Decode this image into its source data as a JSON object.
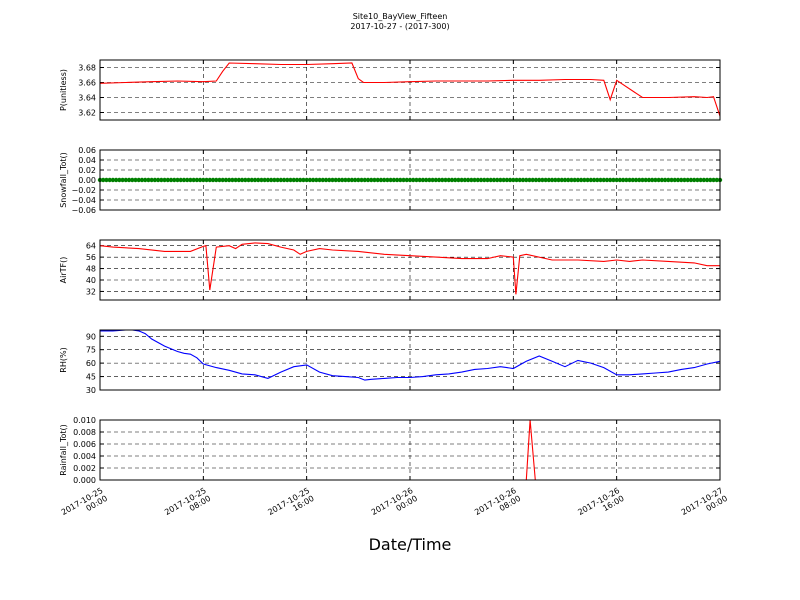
{
  "figure": {
    "title": "Site10_BayView_Fifteen",
    "subtitle": "2017-10-27 - (2017-300)",
    "xlabel": "Date/Time"
  },
  "chart_data": [
    {
      "type": "line",
      "ylabel": "P(unitless)",
      "ylim": [
        3.61,
        3.69
      ],
      "yticks": [
        3.62,
        3.64,
        3.66,
        3.68
      ],
      "ytick_labels": [
        "3.62",
        "3.64",
        "3.66",
        "3.68"
      ],
      "color": "#ff0000",
      "grid": true,
      "series": [
        {
          "x": [
            0,
            2,
            4,
            6,
            8,
            9,
            9.5,
            10,
            12,
            14,
            16,
            18,
            19.5,
            20,
            20.4,
            21,
            22,
            24,
            26,
            28,
            30,
            32,
            34,
            36,
            38,
            39,
            39.5,
            40,
            42,
            44,
            46,
            47,
            47.5,
            48
          ],
          "y": [
            3.659,
            3.66,
            3.661,
            3.662,
            3.661,
            3.662,
            3.675,
            3.686,
            3.685,
            3.684,
            3.684,
            3.685,
            3.686,
            3.665,
            3.66,
            3.66,
            3.66,
            3.661,
            3.662,
            3.662,
            3.662,
            3.663,
            3.663,
            3.664,
            3.664,
            3.663,
            3.637,
            3.663,
            3.64,
            3.64,
            3.641,
            3.64,
            3.641,
            3.615
          ]
        }
      ]
    },
    {
      "type": "scatter",
      "ylabel": "Snowfall_Tot()",
      "ylim": [
        -0.06,
        0.06
      ],
      "yticks": [
        -0.06,
        -0.04,
        -0.02,
        0.0,
        0.02,
        0.04,
        0.06
      ],
      "ytick_labels": [
        "−0.06",
        "−0.04",
        "−0.02",
        "0.00",
        "0.02",
        "0.04",
        "0.06"
      ],
      "color": "#008000",
      "grid": true,
      "series": [
        {
          "x_range": [
            0,
            48
          ],
          "constant": 0.0
        }
      ]
    },
    {
      "type": "line",
      "ylabel": "AirTF()",
      "ylim": [
        26,
        68
      ],
      "yticks": [
        32,
        40,
        48,
        56,
        64
      ],
      "ytick_labels": [
        "32",
        "40",
        "48",
        "56",
        "64"
      ],
      "color": "#ff0000",
      "grid": true,
      "series": [
        {
          "x": [
            0,
            1,
            3,
            5,
            7,
            8,
            8.2,
            8.5,
            9,
            10,
            10.5,
            11,
            12,
            13,
            14,
            15,
            15.5,
            16,
            17,
            18,
            20,
            22,
            24,
            26,
            28,
            30,
            31,
            32,
            32.2,
            32.5,
            33,
            35,
            37,
            39,
            40,
            41,
            42,
            44,
            46,
            47,
            48
          ],
          "y": [
            64,
            63,
            62,
            60,
            60,
            63.5,
            64,
            33,
            63,
            64,
            62,
            65,
            66,
            65.5,
            63,
            61,
            58,
            60,
            62,
            61,
            60,
            58,
            57,
            56,
            55,
            55,
            57,
            56,
            30,
            57,
            58,
            54,
            54,
            53,
            54,
            53,
            54,
            53,
            52,
            50,
            50
          ]
        }
      ]
    },
    {
      "type": "line",
      "ylabel": "RH(%)",
      "ylim": [
        30,
        97
      ],
      "yticks": [
        30,
        45,
        60,
        75,
        90
      ],
      "ytick_labels": [
        "30",
        "45",
        "60",
        "75",
        "90"
      ],
      "color": "#0000ff",
      "grid": true,
      "series": [
        {
          "x": [
            0,
            1,
            2,
            2.5,
            3,
            3.5,
            4,
            5,
            6,
            6.5,
            7,
            7.5,
            8,
            9,
            10,
            11,
            12,
            13,
            14,
            15,
            16,
            17,
            18,
            19,
            20,
            20.5,
            21,
            22,
            23,
            24,
            25,
            26,
            27,
            28,
            29,
            30,
            31,
            31.5,
            32,
            32.5,
            33,
            34,
            35,
            36,
            37,
            38,
            39,
            40,
            41,
            42,
            43,
            44,
            45,
            46,
            47,
            48
          ],
          "y": [
            96,
            96,
            97,
            97,
            96,
            93,
            87,
            79,
            73,
            71,
            70,
            66,
            59,
            55,
            52,
            48,
            47,
            43,
            50,
            56,
            58,
            50,
            46,
            45,
            44,
            41,
            42,
            43,
            44,
            44,
            45,
            47,
            48,
            50,
            53,
            54,
            56,
            55,
            54,
            58,
            62,
            68,
            62,
            56,
            63,
            60,
            55,
            47,
            47,
            48,
            49,
            50,
            53,
            55,
            59,
            62
          ]
        }
      ]
    },
    {
      "type": "line",
      "ylabel": "Rainfall_Tot()",
      "ylim": [
        0.0,
        0.01
      ],
      "yticks": [
        0.0,
        0.002,
        0.004,
        0.006,
        0.008,
        0.01
      ],
      "ytick_labels": [
        "0.000",
        "0.002",
        "0.004",
        "0.006",
        "0.008",
        "0.010"
      ],
      "color": "#ff0000",
      "grid": true,
      "series": [
        {
          "x": [
            0,
            33.0,
            33.3,
            33.7,
            48
          ],
          "y": [
            0,
            0,
            0.01,
            0,
            0
          ]
        }
      ]
    }
  ],
  "x_axis": {
    "range_hours": [
      0,
      48
    ],
    "ticks_hours": [
      0,
      8,
      16,
      24,
      32,
      40,
      48
    ],
    "tick_labels": [
      [
        "2017-10-25",
        "00:00"
      ],
      [
        "2017-10-25",
        "08:00"
      ],
      [
        "2017-10-25",
        "16:00"
      ],
      [
        "2017-10-26",
        "00:00"
      ],
      [
        "2017-10-26",
        "08:00"
      ],
      [
        "2017-10-26",
        "16:00"
      ],
      [
        "2017-10-27",
        "00:00"
      ]
    ]
  }
}
